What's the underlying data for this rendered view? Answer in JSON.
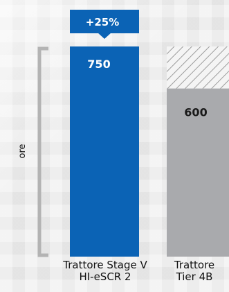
{
  "chart_data": {
    "type": "bar",
    "ylabel": "ore",
    "categories": [
      [
        "Trattore Stage V",
        "HI-eSCR 2"
      ],
      [
        "Trattore",
        "Tier 4B"
      ]
    ],
    "values": [
      750,
      600
    ],
    "value_labels": [
      "750",
      "600"
    ],
    "ylim": [
      0,
      750
    ],
    "bar_colors": [
      "#0b63b5",
      "#a9aaad"
    ],
    "value_label_colors": [
      "#ffffff",
      "#1a1a1a"
    ],
    "hatched_gap_reference": 750,
    "annotation": {
      "text": "+25%",
      "bar_index": 0,
      "color": "#0b63b5"
    },
    "bracket_color": "#b3b3b3"
  }
}
